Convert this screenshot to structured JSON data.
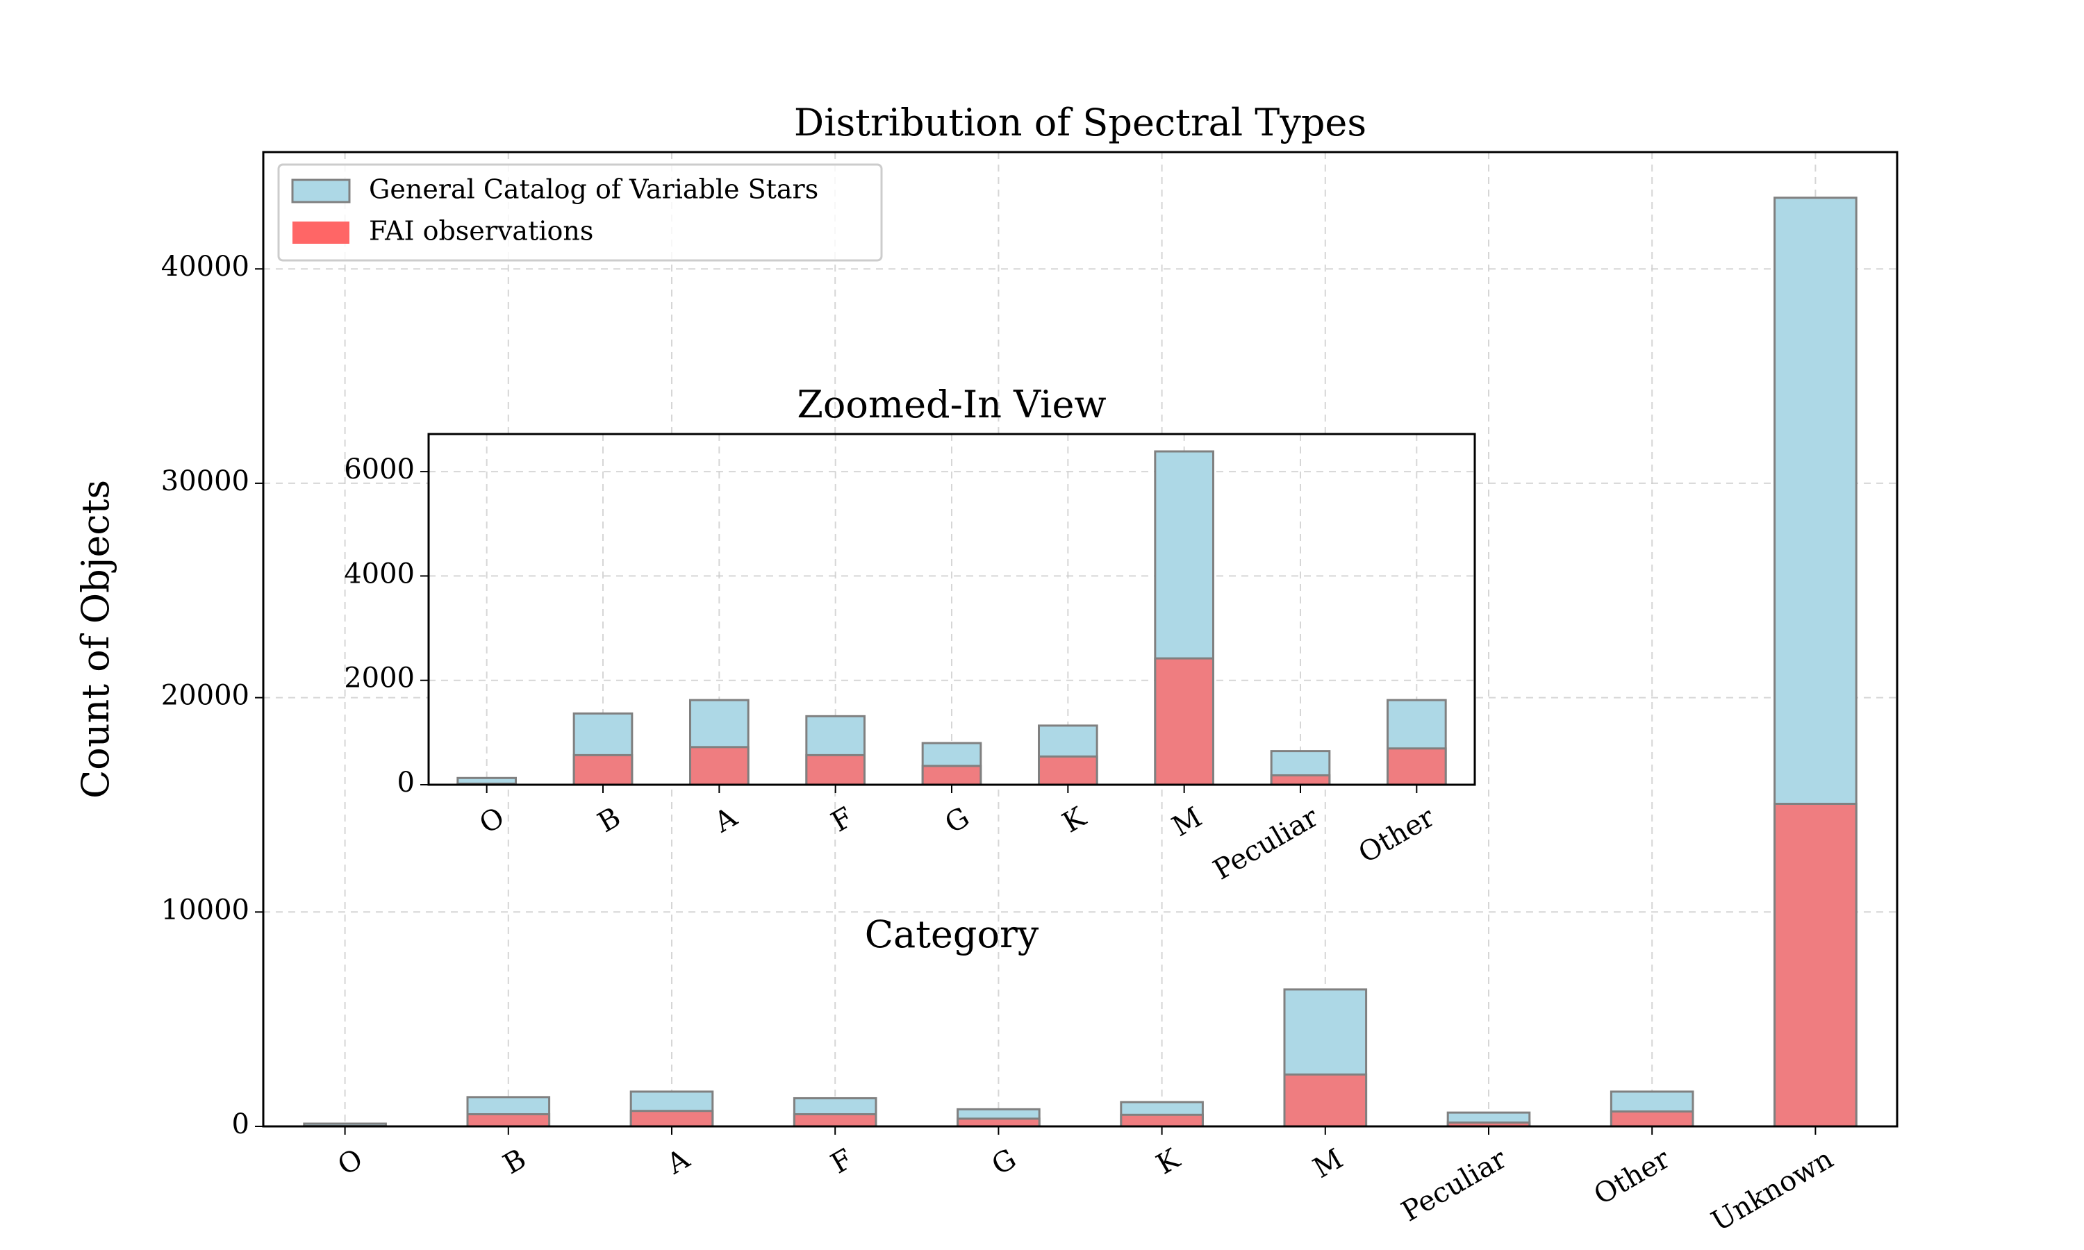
{
  "chart_data": [
    {
      "type": "bar",
      "title": "Distribution of Spectral Types",
      "ylabel": "Count of Objects",
      "categories": [
        "O",
        "B",
        "A",
        "F",
        "G",
        "K",
        "M",
        "Peculiar",
        "Other",
        "Unknown"
      ],
      "series": [
        {
          "name": "General Catalog of Variable Stars",
          "color": "#add8e6",
          "values": [
            129,
            1365,
            1622,
            1313,
            798,
            1133,
            6387,
            644,
            1622,
            43320
          ]
        },
        {
          "name": "FAI observations",
          "color": "#ff6666",
          "values": [
            20,
            567,
            721,
            567,
            360,
            541,
            2421,
            180,
            695,
            15047
          ]
        }
      ],
      "ylim": [
        0,
        45450
      ],
      "yticks": [
        0,
        10000,
        20000,
        30000,
        40000
      ],
      "grid": true,
      "legend": "upper left"
    },
    {
      "type": "bar",
      "title": "Zoomed-In View",
      "xlabel": "Category",
      "categories": [
        "O",
        "B",
        "A",
        "F",
        "G",
        "K",
        "M",
        "Peculiar",
        "Other"
      ],
      "series": [
        {
          "name": "General Catalog of Variable Stars",
          "color": "#add8e6",
          "values": [
            129,
            1365,
            1622,
            1313,
            798,
            1133,
            6387,
            644,
            1622
          ]
        },
        {
          "name": "FAI observations",
          "color": "#ff6666",
          "values": [
            20,
            567,
            721,
            567,
            360,
            541,
            2421,
            180,
            695
          ]
        }
      ],
      "ylim": [
        0,
        6720
      ],
      "yticks": [
        0,
        2000,
        4000,
        6000
      ],
      "grid": true
    }
  ]
}
